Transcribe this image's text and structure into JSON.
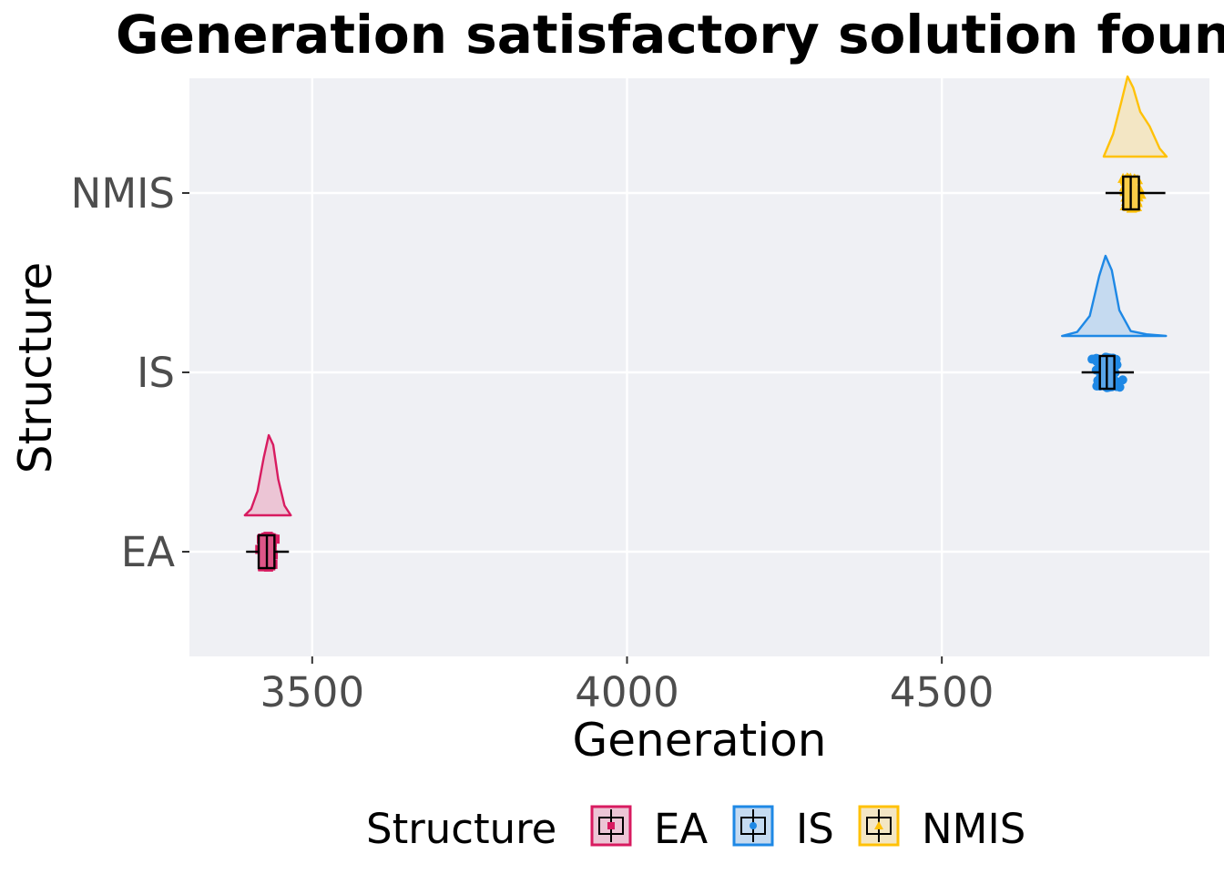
{
  "chart_data": {
    "type": "raincloud",
    "title": "Generation satisfactory solution found",
    "xlabel": "Generation",
    "ylabel": "Structure",
    "xlim": [
      3305,
      4925
    ],
    "x_ticks": [
      3500,
      4000,
      4500
    ],
    "x_tick_labels": [
      "3500",
      "4000",
      "4500"
    ],
    "categories": [
      "EA",
      "IS",
      "NMIS"
    ],
    "grid": true,
    "legend_position": "bottom",
    "legend_title": "Structure",
    "series": [
      {
        "name": "EA",
        "color": "#d81b60",
        "fill": "#ecc5d5",
        "marker": "square",
        "box": {
          "whisker_low": 3395,
          "q1": 3415,
          "median": 3428,
          "q3": 3440,
          "whisker_high": 3463
        },
        "points_range": [
          3393,
          3470
        ],
        "density": [
          [
            3393,
            0.0
          ],
          [
            3403,
            0.08
          ],
          [
            3413,
            0.3
          ],
          [
            3423,
            0.72
          ],
          [
            3431,
            1.0
          ],
          [
            3438,
            0.88
          ],
          [
            3446,
            0.45
          ],
          [
            3456,
            0.12
          ],
          [
            3466,
            0.0
          ]
        ]
      },
      {
        "name": "IS",
        "color": "#1e88e5",
        "fill": "#c5daf0",
        "marker": "circle",
        "box": {
          "whisker_low": 4722,
          "q1": 4751,
          "median": 4762,
          "q3": 4774,
          "whisker_high": 4805
        },
        "points_range": [
          4695,
          4850
        ],
        "density": [
          [
            4691,
            0.0
          ],
          [
            4715,
            0.05
          ],
          [
            4735,
            0.25
          ],
          [
            4750,
            0.75
          ],
          [
            4760,
            1.0
          ],
          [
            4770,
            0.82
          ],
          [
            4782,
            0.32
          ],
          [
            4800,
            0.06
          ],
          [
            4825,
            0.02
          ],
          [
            4856,
            0.0
          ]
        ]
      },
      {
        "name": "NMIS",
        "color": "#ffc107",
        "fill": "#f3e6c4",
        "marker": "triangle",
        "box": {
          "whisker_low": 4760,
          "q1": 4788,
          "median": 4800,
          "q3": 4813,
          "whisker_high": 4855
        },
        "points_range": [
          4755,
          4860
        ],
        "density": [
          [
            4757,
            0.0
          ],
          [
            4772,
            0.28
          ],
          [
            4785,
            0.68
          ],
          [
            4795,
            1.0
          ],
          [
            4804,
            0.86
          ],
          [
            4815,
            0.56
          ],
          [
            4830,
            0.38
          ],
          [
            4846,
            0.1
          ],
          [
            4857,
            0.0
          ]
        ]
      }
    ]
  }
}
